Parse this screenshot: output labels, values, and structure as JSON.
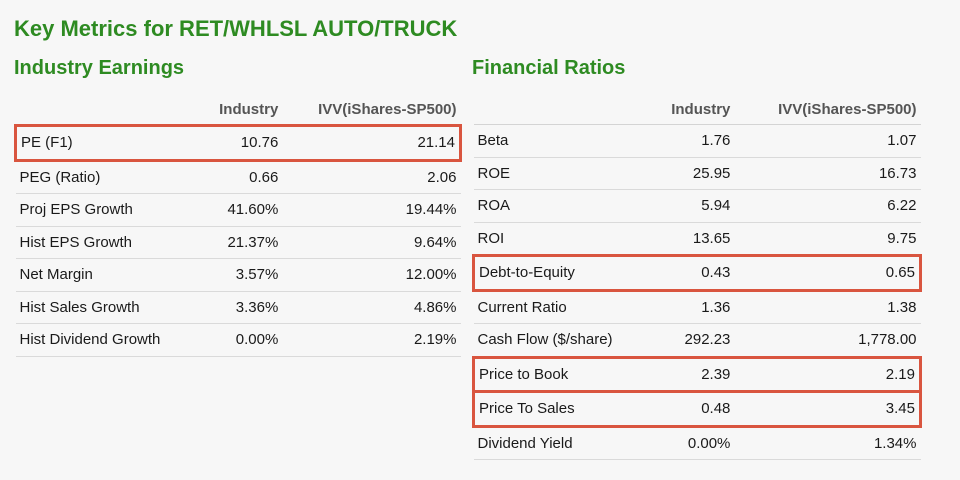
{
  "title": "Key Metrics for RET/WHLSL AUTO/TRUCK",
  "industry_earnings": {
    "heading": "Industry Earnings",
    "columns": [
      "",
      "Industry",
      "IVV(iShares-SP500)"
    ],
    "rows": [
      {
        "label": "PE (F1)",
        "industry": "10.76",
        "ivv": "21.14",
        "highlighted": true
      },
      {
        "label": "PEG (Ratio)",
        "industry": "0.66",
        "ivv": "2.06",
        "highlighted": false
      },
      {
        "label": "Proj EPS Growth",
        "industry": "41.60%",
        "ivv": "19.44%",
        "highlighted": false
      },
      {
        "label": "Hist EPS Growth",
        "industry": "21.37%",
        "ivv": "9.64%",
        "highlighted": false
      },
      {
        "label": "Net Margin",
        "industry": "3.57%",
        "ivv": "12.00%",
        "highlighted": false
      },
      {
        "label": "Hist Sales Growth",
        "industry": "3.36%",
        "ivv": "4.86%",
        "highlighted": false
      },
      {
        "label": "Hist Dividend Growth",
        "industry": "0.00%",
        "ivv": "2.19%",
        "highlighted": false
      }
    ]
  },
  "financial_ratios": {
    "heading": "Financial Ratios",
    "columns": [
      "",
      "Industry",
      "IVV(iShares-SP500)"
    ],
    "rows": [
      {
        "label": "Beta",
        "industry": "1.76",
        "ivv": "1.07",
        "highlighted": false
      },
      {
        "label": "ROE",
        "industry": "25.95",
        "ivv": "16.73",
        "highlighted": false
      },
      {
        "label": "ROA",
        "industry": "5.94",
        "ivv": "6.22",
        "highlighted": false
      },
      {
        "label": "ROI",
        "industry": "13.65",
        "ivv": "9.75",
        "highlighted": false
      },
      {
        "label": "Debt-to-Equity",
        "industry": "0.43",
        "ivv": "0.65",
        "highlighted": true
      },
      {
        "label": "Current Ratio",
        "industry": "1.36",
        "ivv": "1.38",
        "highlighted": false
      },
      {
        "label": "Cash Flow ($/share)",
        "industry": "292.23",
        "ivv": "1,778.00",
        "highlighted": false
      },
      {
        "label": "Price to Book",
        "industry": "2.39",
        "ivv": "2.19",
        "highlighted": true
      },
      {
        "label": "Price To Sales",
        "industry": "0.48",
        "ivv": "3.45",
        "highlighted": true
      },
      {
        "label": "Dividend Yield",
        "industry": "0.00%",
        "ivv": "1.34%",
        "highlighted": false
      }
    ]
  },
  "colors": {
    "heading_green": "#2e8b22",
    "highlight_red": "#d9553f",
    "background": "#f7f7f7"
  }
}
